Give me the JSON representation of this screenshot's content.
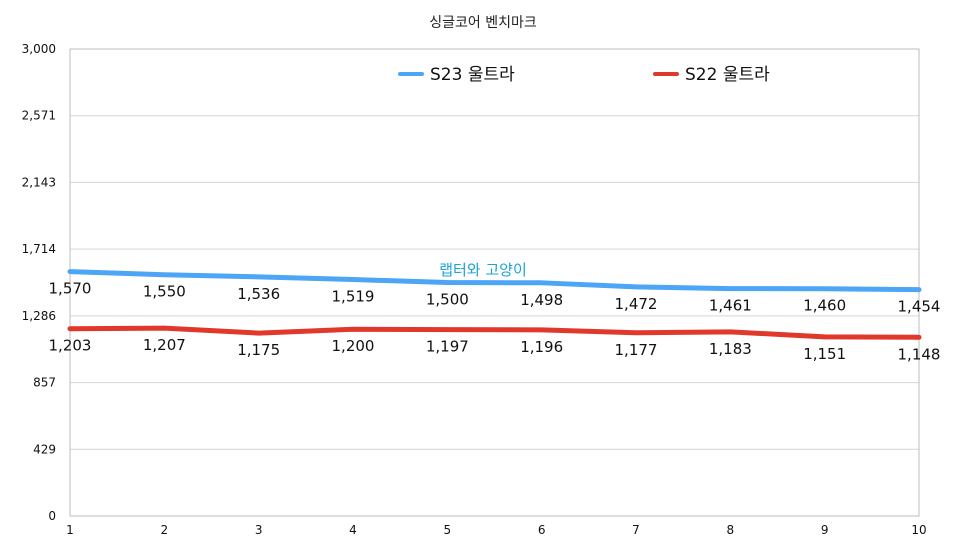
{
  "chart_data": {
    "type": "line",
    "title": "싱글코어 벤치마크",
    "x": [
      1,
      2,
      3,
      4,
      5,
      6,
      7,
      8,
      9,
      10
    ],
    "ylim": [
      0,
      3000
    ],
    "yticks": [
      "0",
      "429",
      "857",
      "1,286",
      "1,714",
      "2,143",
      "2,571",
      "3,000"
    ],
    "ytick_values": [
      0,
      428.57,
      857.14,
      1285.71,
      1714.29,
      2142.86,
      2571.43,
      3000
    ],
    "grid": true,
    "legend_position": "top",
    "series": [
      {
        "name": "S23 울트라",
        "color": "#4ca5f5",
        "values": [
          1570,
          1550,
          1536,
          1519,
          1500,
          1498,
          1472,
          1461,
          1460,
          1454
        ],
        "labels": [
          "1,570",
          "1,550",
          "1,536",
          "1,519",
          "1,500",
          "1,498",
          "1,472",
          "1,461",
          "1,460",
          "1,454"
        ]
      },
      {
        "name": "S22 울트라",
        "color": "#e0392b",
        "values": [
          1203,
          1207,
          1175,
          1200,
          1197,
          1196,
          1177,
          1183,
          1151,
          1148
        ],
        "labels": [
          "1,203",
          "1,207",
          "1,175",
          "1,200",
          "1,197",
          "1,196",
          "1,177",
          "1,183",
          "1,151",
          "1,148"
        ]
      }
    ],
    "annotation": "랩터와 고양이"
  }
}
